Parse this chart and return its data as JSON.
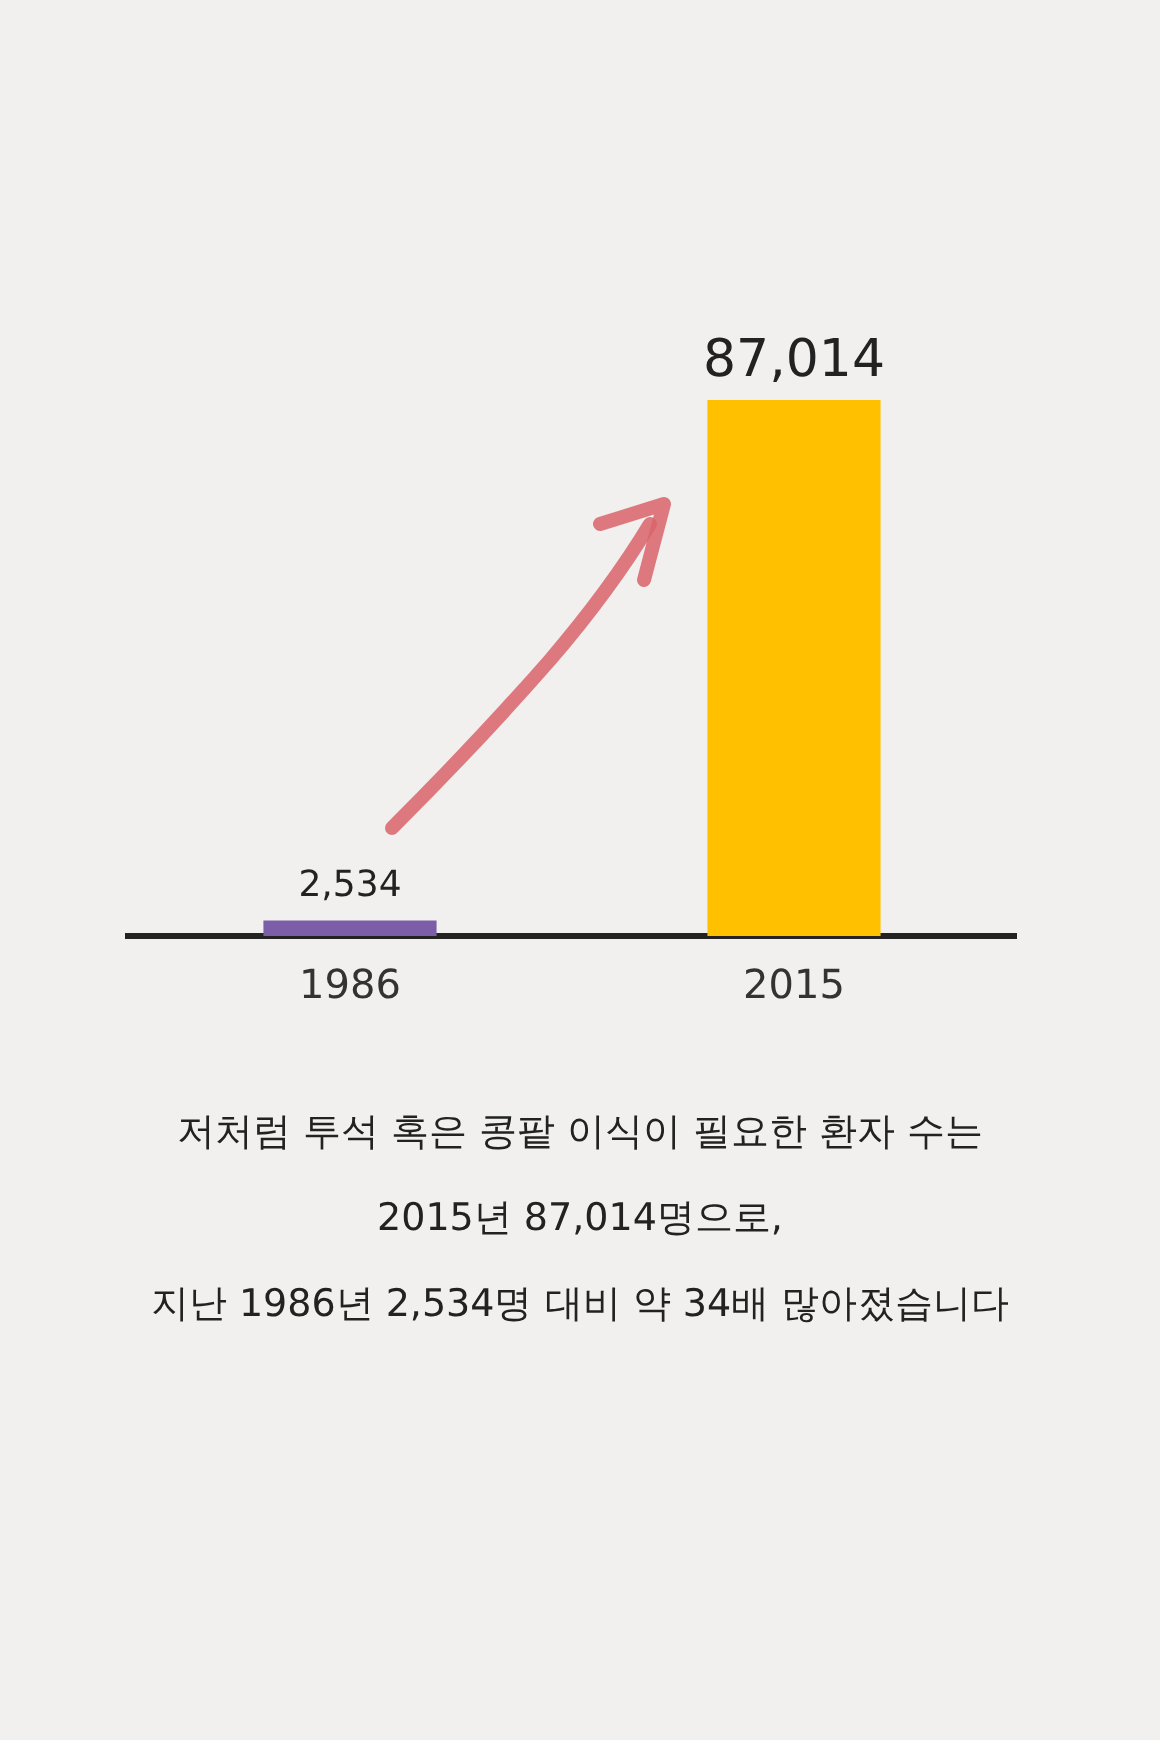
{
  "chart_data": {
    "type": "bar",
    "relative": false,
    "categories": [
      "1986",
      "2015"
    ],
    "values": [
      2534,
      87014
    ],
    "colors": [
      "#7b5ea7",
      "#ffc000"
    ],
    "value_labels": [
      "2,534",
      "87,014"
    ],
    "grid": false,
    "legend": false,
    "annotations": [
      "저처럼 투석 혹은 콩팥 이식이 필요한 환자 수는",
      "2015년 87,014명으로,",
      "지난 1986년 2,534명 대비 약 34배 많아졌습니다"
    ]
  }
}
